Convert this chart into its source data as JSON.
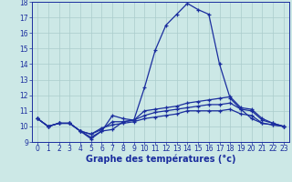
{
  "xlabel": "Graphe des températures (°c)",
  "background_color": "#cce8e6",
  "grid_color": "#aacccc",
  "line_color": "#1a2d9e",
  "hours": [
    0,
    1,
    2,
    3,
    4,
    5,
    6,
    7,
    8,
    9,
    10,
    11,
    12,
    13,
    14,
    15,
    16,
    17,
    18,
    19,
    20,
    21,
    22,
    23
  ],
  "series": [
    [
      10.5,
      10.0,
      10.2,
      10.2,
      9.7,
      9.2,
      9.7,
      9.8,
      10.3,
      10.4,
      12.5,
      14.9,
      16.5,
      17.2,
      17.9,
      17.5,
      17.2,
      14.0,
      11.8,
      11.1,
      10.5,
      10.2,
      10.1,
      10.0
    ],
    [
      10.5,
      10.0,
      10.2,
      10.2,
      9.7,
      9.3,
      9.7,
      10.7,
      10.5,
      10.4,
      11.0,
      11.1,
      11.2,
      11.3,
      11.5,
      11.6,
      11.7,
      11.8,
      11.9,
      11.2,
      11.1,
      10.5,
      10.2,
      10.0
    ],
    [
      10.5,
      10.0,
      10.2,
      10.2,
      9.7,
      9.5,
      9.8,
      10.3,
      10.3,
      10.4,
      10.7,
      10.9,
      11.0,
      11.1,
      11.2,
      11.3,
      11.4,
      11.4,
      11.5,
      11.1,
      11.0,
      10.4,
      10.2,
      10.0
    ],
    [
      10.5,
      10.0,
      10.2,
      10.2,
      9.7,
      9.5,
      9.9,
      10.1,
      10.2,
      10.3,
      10.5,
      10.6,
      10.7,
      10.8,
      11.0,
      11.0,
      11.0,
      11.0,
      11.1,
      10.8,
      10.7,
      10.2,
      10.1,
      10.0
    ]
  ],
  "ylim": [
    9,
    18
  ],
  "yticks": [
    9,
    10,
    11,
    12,
    13,
    14,
    15,
    16,
    17,
    18
  ],
  "xticks": [
    0,
    1,
    2,
    3,
    4,
    5,
    6,
    7,
    8,
    9,
    10,
    11,
    12,
    13,
    14,
    15,
    16,
    17,
    18,
    19,
    20,
    21,
    22,
    23
  ],
  "tick_fontsize": 5.5,
  "xlabel_fontsize": 7,
  "xlabel_bold": true,
  "marker_size": 3.0,
  "linewidth": 0.9
}
